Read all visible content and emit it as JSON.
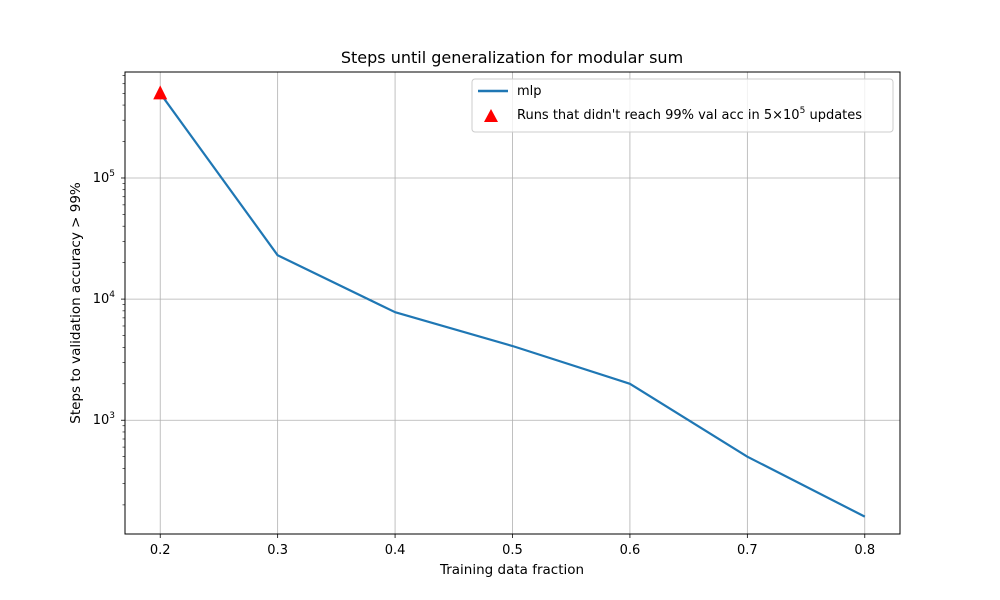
{
  "chart_data": {
    "type": "line",
    "title": "Steps until generalization for modular sum",
    "xlabel": "Training data fraction",
    "ylabel": "Steps to validation accuracy > 99%",
    "x_scale": "linear",
    "y_scale": "log",
    "xlim": [
      0.17,
      0.83
    ],
    "ylim": [
      115,
      750000
    ],
    "x_ticks": [
      "0.2",
      "0.3",
      "0.4",
      "0.5",
      "0.6",
      "0.7",
      "0.8"
    ],
    "y_ticks": [
      {
        "value": 1000,
        "base": "10",
        "exp": "3"
      },
      {
        "value": 10000,
        "base": "10",
        "exp": "4"
      },
      {
        "value": 100000,
        "base": "10",
        "exp": "5"
      }
    ],
    "grid": true,
    "legend_position": "top-right",
    "series": [
      {
        "name": "mlp",
        "color": "#1f77b4",
        "x": [
          0.2,
          0.3,
          0.4,
          0.5,
          0.6,
          0.7,
          0.8
        ],
        "y": [
          500000,
          23000,
          7800,
          4100,
          2000,
          500,
          160
        ]
      }
    ],
    "markers": [
      {
        "name_parts": [
          "Runs that didn't reach 99% val acc in 5×10",
          "5",
          " updates"
        ],
        "shape": "triangle",
        "color": "#ff0000",
        "x": [
          0.2
        ],
        "y": [
          500000
        ]
      }
    ]
  }
}
